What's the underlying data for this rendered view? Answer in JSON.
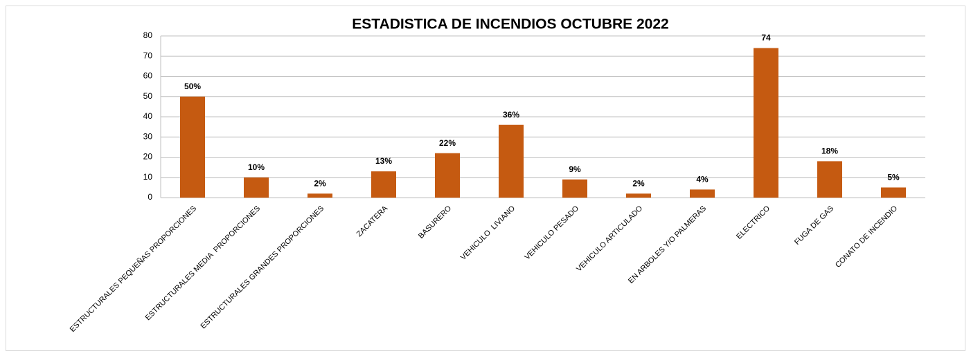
{
  "chart_data": {
    "type": "bar",
    "title": "ESTADISTICA DE INCENDIOS OCTUBRE 2022",
    "categories": [
      "ESTRUCTURALES PEQUEÑAS PROPORCIONES",
      "ESTRUCTURALES MEDIA  PROPORCIONES",
      "ESTRUCTURALES GRANDES PROPORCIONES",
      "ZACATERA",
      "BASURERO",
      "VEHICULO  LIVIANO",
      "VEHICULO PESADO",
      "VEHICULO ARTICULADO",
      "EN ARBOLES Y/O PALMERAS",
      "ELECTRICO",
      "FUGA DE GAS",
      "CONATO DE INCENDIO"
    ],
    "values": [
      50,
      10,
      2,
      13,
      22,
      36,
      9,
      2,
      4,
      74,
      18,
      5
    ],
    "value_labels": [
      "50%",
      "10%",
      "2%",
      "13%",
      "22%",
      "36%",
      "9%",
      "2%",
      "4%",
      "74",
      "18%",
      "5%"
    ],
    "color": "#c55a11",
    "ylim": [
      0,
      80
    ],
    "yticks": [
      0,
      10,
      20,
      30,
      40,
      50,
      60,
      70,
      80
    ],
    "grid": true
  }
}
